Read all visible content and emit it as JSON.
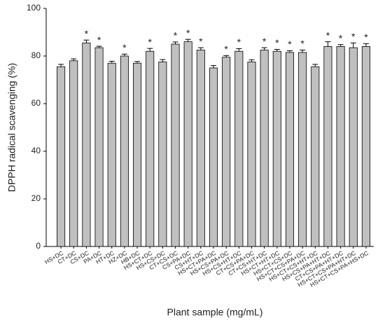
{
  "chart_data": {
    "type": "bar",
    "x_label": "Plant sample (mg/mL)",
    "y_label": "DPPH radical scavenging (%)",
    "categories": [
      "HS+DC",
      "CT+DC",
      "CS+DC",
      "PA+DC",
      "HT+DC",
      "HZ+DC",
      "HB+DC",
      "HS+CT+DC",
      "HS+CS+DC",
      "CT+CS+DC",
      "CS+PA+DC",
      "CS+HT+DC",
      "HS+CT+PA+DC",
      "HS+CS+PA+DC",
      "HS+CS+HT+DC",
      "CT+CS+PA+DC",
      "CT+CS+HT+DC",
      "HS+CT+HT+DC",
      "HS+CT+CS+DC",
      "HS+CT+CS+PA+DC",
      "HS+CT+CS+HT+DC",
      "HS+CS+PA+HT+DC",
      "CT+CS+PA+HT+DC",
      "HS+CT+CS+PA+HT+DC",
      "HS+CT+CS+PA+HS+DC"
    ],
    "values": [
      75.5,
      78,
      85.5,
      83.5,
      77,
      80,
      77,
      82,
      77.5,
      85,
      86,
      82.5,
      75,
      79.5,
      82,
      77.5,
      82.5,
      82,
      81.5,
      81.5,
      75.5,
      84,
      84,
      83.5,
      84
    ],
    "errors": [
      1,
      0.8,
      1.2,
      0.6,
      0.8,
      0.8,
      0.7,
      1.2,
      1,
      0.9,
      1,
      1,
      1,
      0.7,
      1.1,
      0.9,
      1,
      0.8,
      0.7,
      1,
      1,
      2,
      0.8,
      2,
      1.2
    ],
    "markers": [
      null,
      null,
      "*",
      "*",
      null,
      "*",
      null,
      "*",
      null,
      "*",
      "*",
      "*",
      null,
      "*",
      "*",
      null,
      "*",
      "*",
      "*",
      "*",
      null,
      "*",
      "*",
      "*",
      "*"
    ],
    "color": "#c0c0c0",
    "ylim": [
      0,
      100
    ],
    "yticks": [
      0,
      20,
      40,
      60,
      80,
      100
    ]
  }
}
